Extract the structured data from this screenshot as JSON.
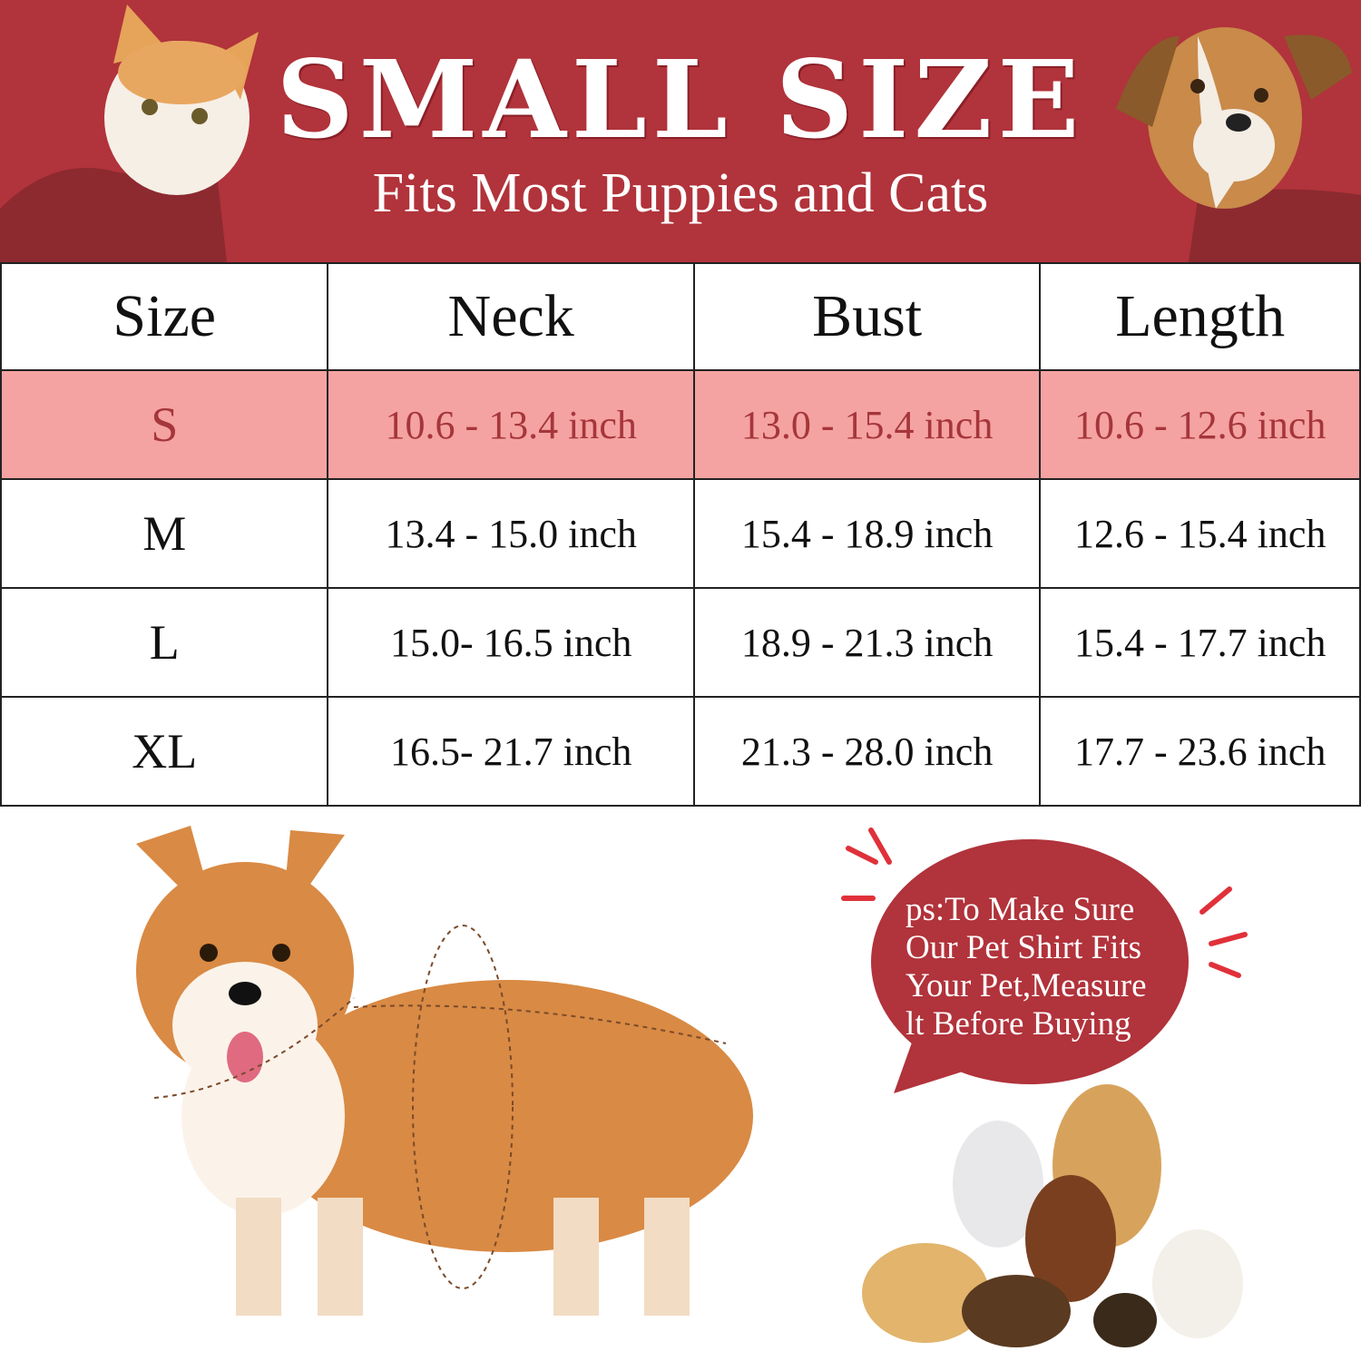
{
  "header": {
    "title": "SMALL SIZE",
    "subtitle": "Fits Most Puppies and Cats"
  },
  "table": {
    "columns": [
      "Size",
      "Neck",
      "Bust",
      "Length"
    ],
    "rows": [
      [
        "S",
        "10.6 - 13.4 inch",
        "13.0 - 15.4 inch",
        "10.6 - 12.6 inch"
      ],
      [
        "M",
        "13.4 - 15.0 inch",
        "15.4 - 18.9 inch",
        "12.6 - 15.4 inch"
      ],
      [
        "L",
        "15.0- 16.5 inch",
        "18.9 - 21.3 inch",
        "15.4 - 17.7 inch"
      ],
      [
        "XL",
        "16.5- 21.7 inch",
        "21.3 - 28.0 inch",
        "17.7 - 23.6 inch"
      ]
    ]
  },
  "note": {
    "lines": [
      "ps:To Make Sure",
      "Our Pet Shirt Fits",
      "Your Pet,Measure",
      "lt Before Buying"
    ]
  },
  "colors": {
    "brand_red": "#b1333b",
    "highlight_row": "#f5a2a2"
  }
}
